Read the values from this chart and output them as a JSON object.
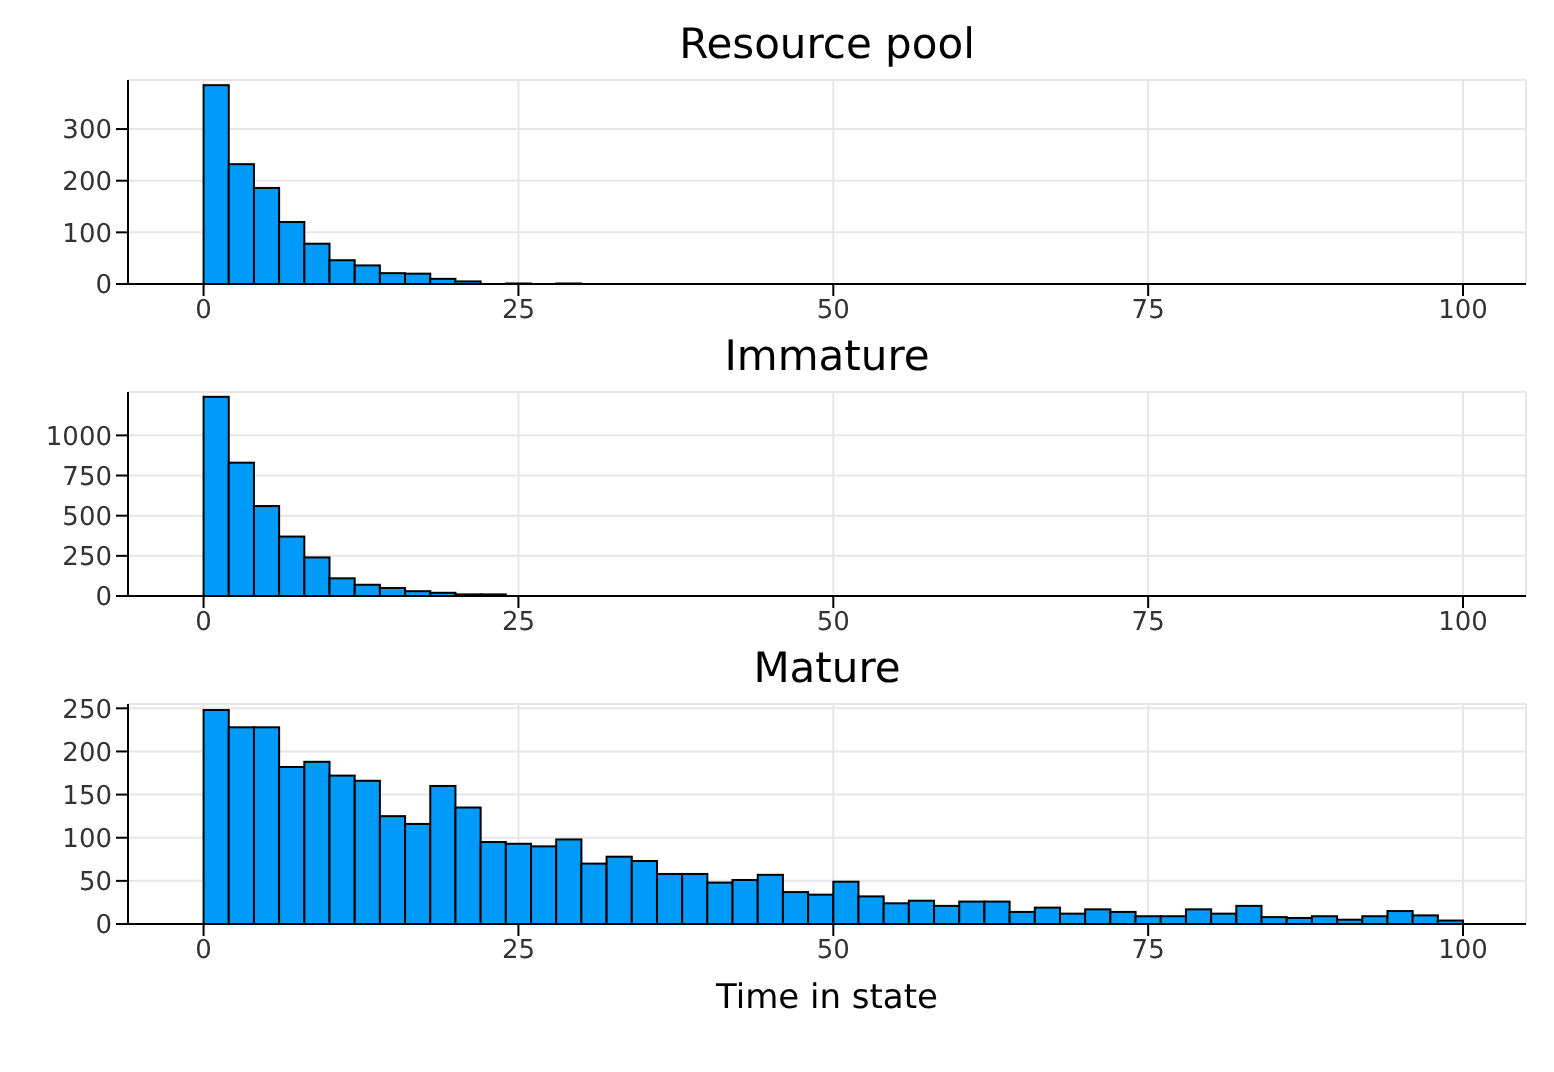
{
  "chart_data": [
    {
      "type": "histogram",
      "title": "Resource pool",
      "bins": [
        0,
        2,
        4,
        6,
        8,
        10,
        12,
        14,
        16,
        18,
        20,
        22,
        24,
        26,
        28,
        30,
        32,
        34,
        36,
        38,
        40,
        42,
        44,
        46,
        48,
        50,
        52,
        54,
        56,
        58,
        60,
        62,
        64,
        66,
        68,
        70,
        72,
        74,
        76,
        78,
        80,
        82,
        84,
        86,
        88,
        90,
        92,
        94,
        96,
        98,
        100
      ],
      "values": [
        385,
        232,
        186,
        120,
        78,
        46,
        36,
        21,
        20,
        10,
        5,
        null,
        1,
        null,
        1,
        0,
        0,
        0,
        0,
        0,
        0,
        null,
        0,
        0,
        0,
        0,
        0,
        0,
        0,
        0,
        0,
        0,
        0,
        0,
        0,
        0,
        0,
        0,
        0,
        0,
        0,
        0,
        0,
        0,
        0,
        0,
        0,
        0,
        0,
        0
      ],
      "color": "#009af9",
      "xlim": [
        -6,
        105
      ],
      "xticks": [
        0,
        25,
        50,
        75,
        100
      ],
      "ylim": [
        0,
        395
      ],
      "yticks": [
        0,
        100,
        200,
        300
      ],
      "grid": true,
      "legend": false
    },
    {
      "type": "histogram",
      "title": "Immature",
      "bins": [
        0,
        2,
        4,
        6,
        8,
        10,
        12,
        14,
        16,
        18,
        20,
        22,
        24,
        26,
        28,
        30,
        32,
        34,
        36,
        38,
        40,
        42,
        44,
        46,
        48,
        50,
        52,
        54,
        56,
        58,
        60,
        62,
        64,
        66,
        68,
        70,
        72,
        74,
        76,
        78,
        80,
        82,
        84,
        86,
        88,
        90,
        92,
        94,
        96,
        98,
        100
      ],
      "values": [
        1240,
        830,
        560,
        370,
        240,
        110,
        70,
        50,
        30,
        20,
        10,
        10,
        null,
        null,
        null,
        0,
        0,
        0,
        0,
        0,
        0,
        0,
        0,
        0,
        0,
        0,
        0,
        0,
        0,
        0,
        0,
        0,
        0,
        0,
        0,
        0,
        0,
        0,
        0,
        0,
        0,
        0,
        0,
        0,
        0,
        0,
        0,
        0,
        0,
        0
      ],
      "color": "#009af9",
      "xlim": [
        -6,
        105
      ],
      "xticks": [
        0,
        25,
        50,
        75,
        100
      ],
      "ylim": [
        0,
        1270
      ],
      "yticks": [
        0,
        250,
        500,
        750,
        1000
      ],
      "grid": true,
      "legend": false
    },
    {
      "type": "histogram",
      "title": "Mature",
      "xlabel": "Time in state",
      "bins": [
        0,
        2,
        4,
        6,
        8,
        10,
        12,
        14,
        16,
        18,
        20,
        22,
        24,
        26,
        28,
        30,
        32,
        34,
        36,
        38,
        40,
        42,
        44,
        46,
        48,
        50,
        52,
        54,
        56,
        58,
        60,
        62,
        64,
        66,
        68,
        70,
        72,
        74,
        76,
        78,
        80,
        82,
        84,
        86,
        88,
        90,
        92,
        94,
        96,
        98,
        100
      ],
      "values": [
        248,
        228,
        228,
        182,
        188,
        172,
        166,
        125,
        116,
        160,
        135,
        95,
        93,
        90,
        98,
        70,
        78,
        73,
        58,
        58,
        48,
        51,
        57,
        37,
        34,
        49,
        32,
        24,
        27,
        21,
        26,
        26,
        14,
        19,
        12,
        17,
        14,
        9,
        9,
        17,
        12,
        21,
        8,
        7,
        9,
        5,
        9,
        15,
        10,
        4
      ],
      "color": "#009af9",
      "xlim": [
        -6,
        105
      ],
      "xticks": [
        0,
        25,
        50,
        75,
        100
      ],
      "ylim": [
        0,
        255
      ],
      "yticks": [
        0,
        50,
        100,
        150,
        200,
        250
      ],
      "grid": true,
      "legend": false
    }
  ]
}
